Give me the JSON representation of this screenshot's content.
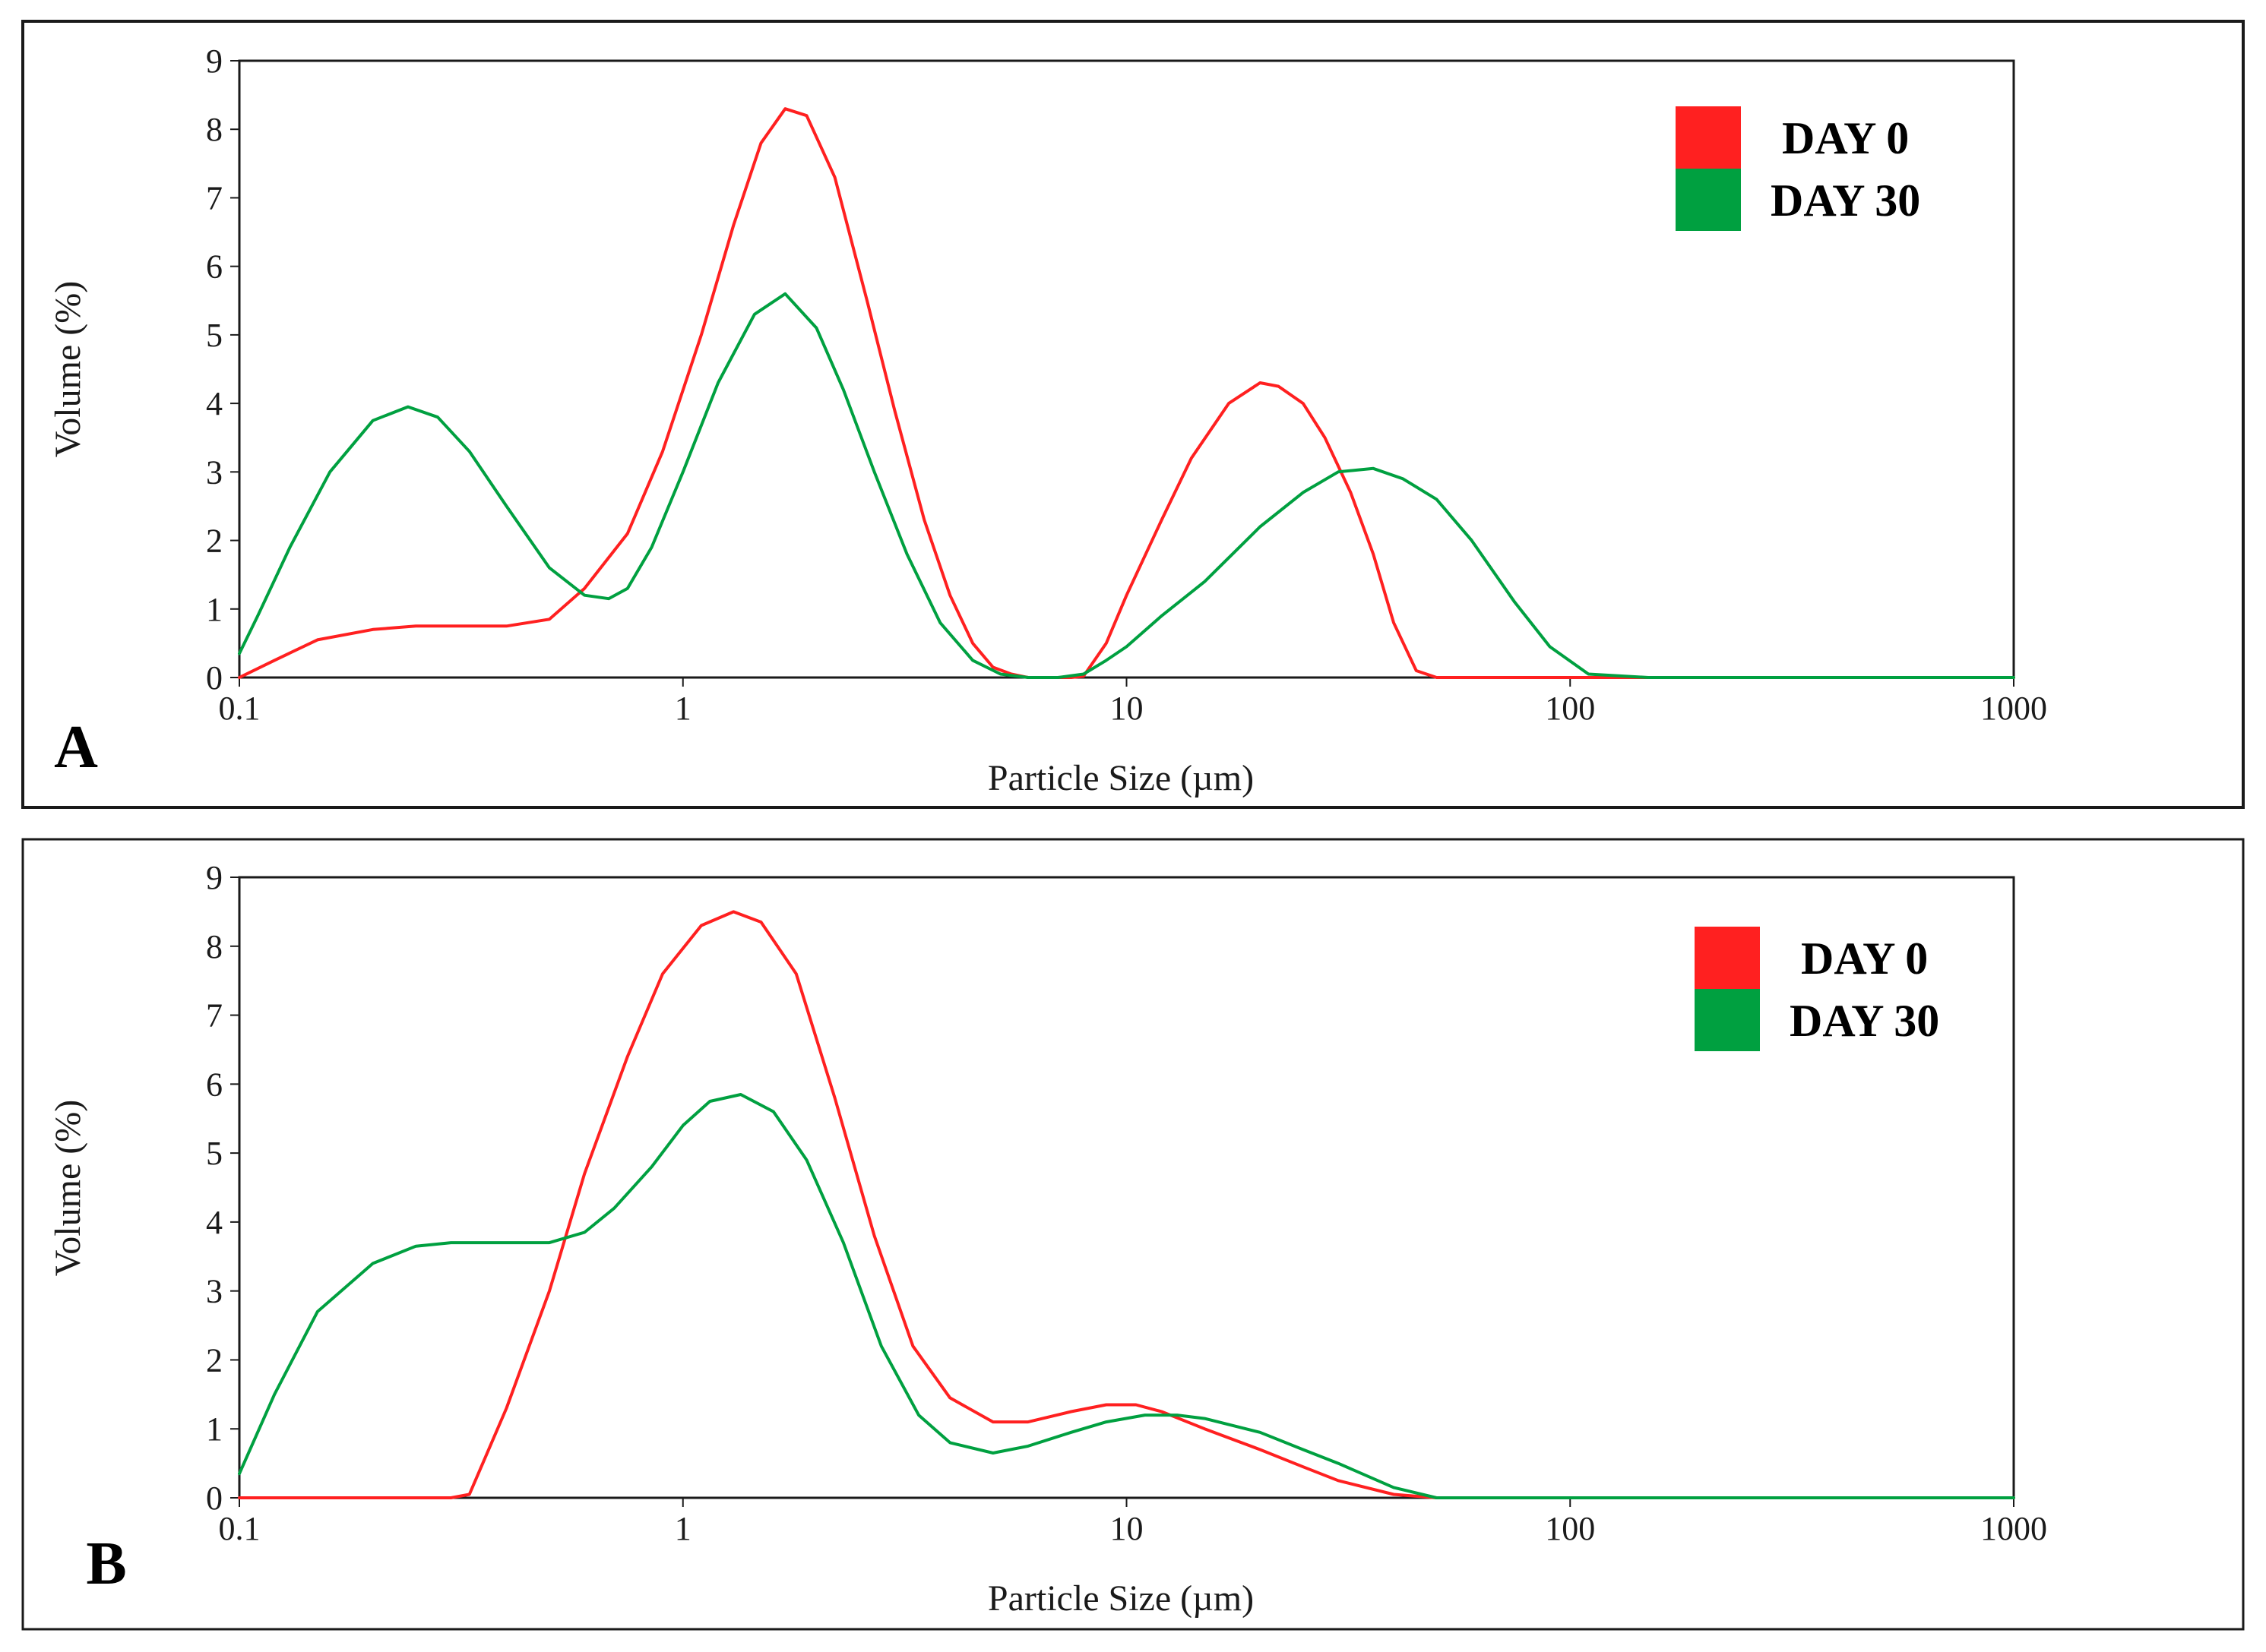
{
  "colors": {
    "day0": "#ff2020",
    "day30": "#00a040",
    "frame": "#1a1a1a"
  },
  "chart_data": [
    {
      "type": "line",
      "panel_label": "A",
      "xlabel": "Particle Size (µm)",
      "ylabel": "Volume (%)",
      "xscale": "log",
      "xlim": [
        0.1,
        1000
      ],
      "ylim": [
        0,
        9
      ],
      "xticks": [
        0.1,
        1,
        10,
        100,
        1000
      ],
      "xtick_labels": [
        "0.1",
        "1",
        "10",
        "100",
        "1000"
      ],
      "yticks": [
        0,
        1,
        2,
        3,
        4,
        5,
        6,
        7,
        8,
        9
      ],
      "legend_position": "top-right",
      "series": [
        {
          "name": "DAY 0",
          "color_key": "day0",
          "x": [
            0.1,
            0.12,
            0.15,
            0.2,
            0.25,
            0.3,
            0.4,
            0.5,
            0.6,
            0.75,
            0.9,
            1.1,
            1.3,
            1.5,
            1.7,
            1.9,
            2.2,
            2.6,
            3.0,
            3.5,
            4.0,
            4.5,
            5.0,
            5.5,
            6.0,
            7.0,
            7.5,
            8.0,
            9.0,
            10,
            12,
            14,
            17,
            20,
            22,
            25,
            28,
            32,
            36,
            40,
            45,
            50,
            60,
            80,
            100,
            200,
            500,
            1000
          ],
          "y": [
            0,
            0.25,
            0.55,
            0.7,
            0.75,
            0.75,
            0.75,
            0.85,
            1.3,
            2.1,
            3.3,
            5.0,
            6.6,
            7.8,
            8.3,
            8.2,
            7.3,
            5.5,
            3.9,
            2.3,
            1.2,
            0.5,
            0.15,
            0.05,
            0,
            0,
            0,
            0.02,
            0.5,
            1.2,
            2.3,
            3.2,
            4.0,
            4.3,
            4.25,
            4.0,
            3.5,
            2.7,
            1.8,
            0.8,
            0.1,
            0,
            0,
            0,
            0,
            0,
            0,
            0
          ]
        },
        {
          "name": "DAY 30",
          "color_key": "day30",
          "x": [
            0.1,
            0.11,
            0.13,
            0.16,
            0.2,
            0.24,
            0.28,
            0.33,
            0.4,
            0.5,
            0.6,
            0.68,
            0.75,
            0.85,
            1.0,
            1.2,
            1.45,
            1.7,
            2.0,
            2.3,
            2.7,
            3.2,
            3.8,
            4.5,
            5.2,
            6.0,
            7.0,
            8.0,
            9.0,
            10,
            12,
            15,
            20,
            25,
            30,
            36,
            42,
            50,
            60,
            75,
            90,
            110,
            150,
            300,
            1000
          ],
          "y": [
            0.35,
            0.9,
            1.9,
            3.0,
            3.75,
            3.95,
            3.8,
            3.3,
            2.5,
            1.6,
            1.2,
            1.15,
            1.3,
            1.9,
            3.0,
            4.3,
            5.3,
            5.6,
            5.1,
            4.2,
            3.0,
            1.8,
            0.8,
            0.25,
            0.05,
            0,
            0,
            0.05,
            0.25,
            0.45,
            0.9,
            1.4,
            2.2,
            2.7,
            3.0,
            3.05,
            2.9,
            2.6,
            2.0,
            1.1,
            0.45,
            0.05,
            0,
            0,
            0
          ]
        }
      ]
    },
    {
      "type": "line",
      "panel_label": "B",
      "xlabel": "Particle Size (µm)",
      "ylabel": "Volume (%)",
      "xscale": "log",
      "xlim": [
        0.1,
        1000
      ],
      "ylim": [
        0,
        9
      ],
      "xticks": [
        0.1,
        1,
        10,
        100,
        1000
      ],
      "xtick_labels": [
        "0.1",
        "1",
        "10",
        "100",
        "1000"
      ],
      "yticks": [
        0,
        1,
        2,
        3,
        4,
        5,
        6,
        7,
        8,
        9
      ],
      "legend_position": "top-right",
      "series": [
        {
          "name": "DAY 0",
          "color_key": "day0",
          "x": [
            0.1,
            0.2,
            0.3,
            0.33,
            0.4,
            0.5,
            0.6,
            0.75,
            0.9,
            1.1,
            1.3,
            1.5,
            1.8,
            2.2,
            2.7,
            3.3,
            4.0,
            5.0,
            6.0,
            7.5,
            9.0,
            10.5,
            12,
            15,
            20,
            25,
            30,
            40,
            50,
            55,
            100,
            1000
          ],
          "y": [
            0,
            0,
            0,
            0.05,
            1.3,
            3.0,
            4.7,
            6.4,
            7.6,
            8.3,
            8.5,
            8.35,
            7.6,
            5.8,
            3.8,
            2.2,
            1.45,
            1.1,
            1.1,
            1.25,
            1.35,
            1.35,
            1.25,
            1.0,
            0.7,
            0.45,
            0.25,
            0.05,
            0,
            0,
            0,
            0
          ]
        },
        {
          "name": "DAY 30",
          "color_key": "day30",
          "x": [
            0.1,
            0.12,
            0.15,
            0.2,
            0.25,
            0.3,
            0.4,
            0.5,
            0.6,
            0.7,
            0.85,
            1.0,
            1.15,
            1.35,
            1.6,
            1.9,
            2.3,
            2.8,
            3.4,
            4.0,
            5.0,
            6.0,
            7.5,
            9.0,
            11,
            13,
            15,
            20,
            25,
            30,
            40,
            50,
            55,
            100,
            1000
          ],
          "y": [
            0.35,
            1.5,
            2.7,
            3.4,
            3.65,
            3.7,
            3.7,
            3.7,
            3.85,
            4.2,
            4.8,
            5.4,
            5.75,
            5.85,
            5.6,
            4.9,
            3.7,
            2.2,
            1.2,
            0.8,
            0.65,
            0.75,
            0.95,
            1.1,
            1.2,
            1.2,
            1.15,
            0.95,
            0.7,
            0.5,
            0.15,
            0,
            0,
            0,
            0
          ]
        }
      ]
    }
  ]
}
